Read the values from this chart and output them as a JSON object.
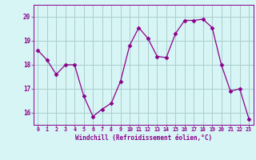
{
  "x": [
    0,
    1,
    2,
    3,
    4,
    5,
    6,
    7,
    8,
    9,
    10,
    11,
    12,
    13,
    14,
    15,
    16,
    17,
    18,
    19,
    20,
    21,
    22,
    23
  ],
  "y": [
    18.6,
    18.2,
    17.6,
    18.0,
    18.0,
    16.7,
    15.85,
    16.15,
    16.4,
    17.3,
    18.8,
    19.55,
    19.1,
    18.35,
    18.3,
    19.3,
    19.85,
    19.85,
    19.9,
    19.55,
    18.0,
    16.9,
    17.0,
    15.75
  ],
  "line_color": "#8B008B",
  "marker": "D",
  "marker_size": 2.5,
  "bg_color": "#d8f5f5",
  "grid_color": "#aacccc",
  "xlabel": "Windchill (Refroidissement éolien,°C)",
  "xlabel_color": "#8B008B",
  "tick_color": "#8B008B",
  "ylim": [
    15.5,
    20.5
  ],
  "yticks": [
    16,
    17,
    18,
    19,
    20
  ],
  "xlim": [
    -0.5,
    23.5
  ],
  "xticks": [
    0,
    1,
    2,
    3,
    4,
    5,
    6,
    7,
    8,
    9,
    10,
    11,
    12,
    13,
    14,
    15,
    16,
    17,
    18,
    19,
    20,
    21,
    22,
    23
  ]
}
